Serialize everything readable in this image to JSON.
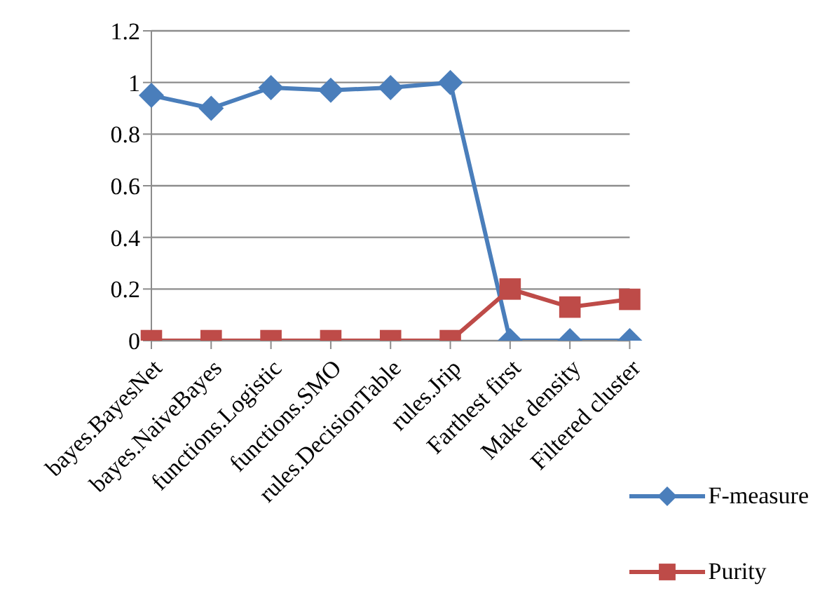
{
  "chart_data": {
    "type": "line",
    "categories": [
      "bayes.BayesNet",
      "bayes.NaiveBayes",
      "functions.Logistic",
      "functions.SMO",
      "rules.DecisionTable",
      "rules.Jrip",
      "Farthest first",
      "Make density",
      "Filtered cluster"
    ],
    "series": [
      {
        "name": "F-measure",
        "color": "#4a7ebb",
        "marker": "diamond",
        "values": [
          0.95,
          0.9,
          0.98,
          0.97,
          0.98,
          1,
          0,
          0,
          0
        ]
      },
      {
        "name": "Purity",
        "color": "#be4b48",
        "marker": "square",
        "values": [
          0,
          0,
          0,
          0,
          0,
          0,
          0.2,
          0.13,
          0.16
        ]
      }
    ],
    "ylim": [
      0,
      1.2
    ],
    "yticks": [
      0,
      0.2,
      0.4,
      0.6,
      0.8,
      1,
      1.2
    ],
    "grid": "y",
    "legend": "bottom right"
  }
}
